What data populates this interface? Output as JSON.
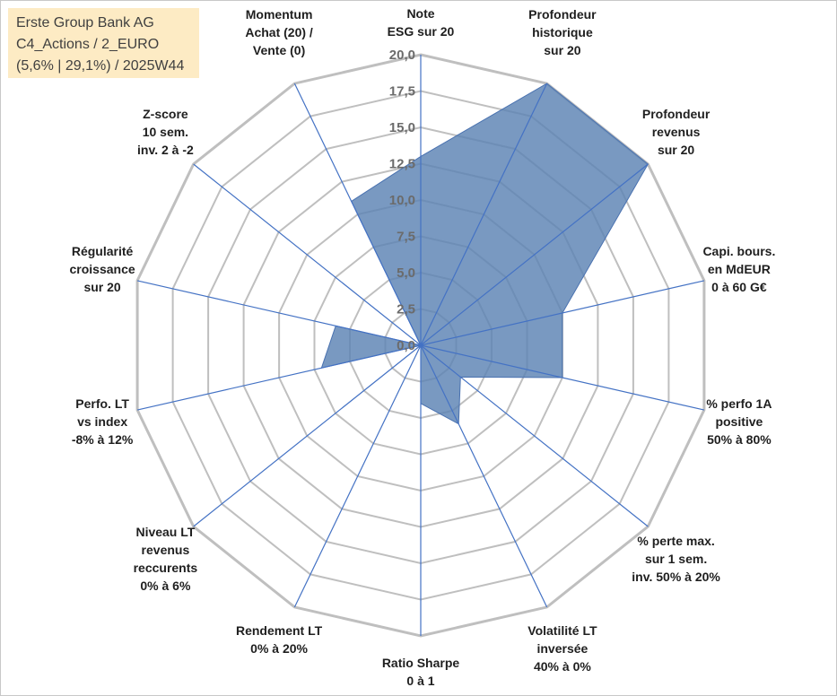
{
  "title_box": {
    "line1": "Erste Group Bank AG",
    "line2": "C4_Actions / 2_EURO",
    "line3": "(5,6% | 29,1%) / 2025W44",
    "background": "#fdebc4"
  },
  "chart_data": {
    "type": "radar",
    "title": "Erste Group Bank AG",
    "rmin": 0,
    "rmax": 20,
    "tick_step": 2.5,
    "tick_labels": [
      "0,0",
      "2,5",
      "5,0",
      "7,5",
      "10,0",
      "12,5",
      "15,0",
      "17,5",
      "20,0"
    ],
    "axes": [
      "Note\nESG sur 20",
      "Profondeur\nhistorique\nsur 20",
      "Profondeur\nrevenus\nsur 20",
      "Capi. bours.\nen MdEUR\n0 à 60 G€",
      "% perfo 1A\npositive\n50% à 80%",
      "% perte max.\nsur 1 sem.\ninv. 50% à 20%",
      "Volatilité LT\ninversée\n40% à 0%",
      "Ratio Sharpe\n0 à 1",
      "Rendement LT\n0% à 20%",
      "Niveau LT\nrevenus\nreccurents\n0% à 6%",
      "Perfo. LT\nvs index\n-8% à 12%",
      "Régularité\ncroissance\nsur 20",
      "Z-score\n10 sem.\ninv. 2 à -2",
      "Momentum\nAchat (20) /\nVente (0)"
    ],
    "series": [
      {
        "values": [
          13,
          20,
          20,
          10,
          10,
          3.5,
          6,
          4,
          0,
          0,
          7,
          6,
          0,
          11
        ],
        "fill": "#5b82b3",
        "stroke": "#4a72b0"
      }
    ],
    "grid": true,
    "grid_color": "#bfbfbf",
    "spoke_color": "#4472c4"
  }
}
